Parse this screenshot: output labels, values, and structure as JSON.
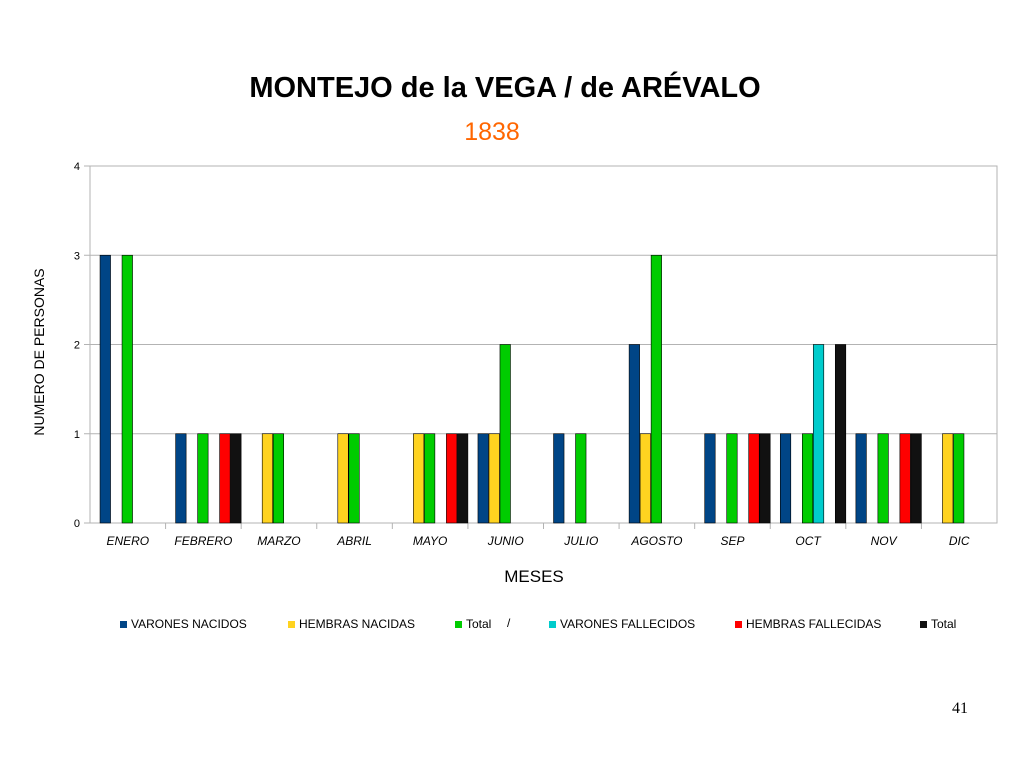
{
  "slide": {
    "title": "MONTEJO de la VEGA / de ARÉVALO",
    "subtitle": "1838",
    "page_number": "41"
  },
  "legend_separator": "/",
  "chart_data": {
    "type": "bar",
    "title": "",
    "xlabel": "MESES",
    "ylabel": "NUMERO DE PERSONAS",
    "ylim": [
      0,
      4
    ],
    "yticks": [
      "0",
      "1",
      "2",
      "3",
      "4"
    ],
    "grid": true,
    "legend_position": "bottom",
    "categories": [
      "ENERO",
      "FEBRERO",
      "MARZO",
      "ABRIL",
      "MAYO",
      "JUNIO",
      "JULIO",
      "AGOSTO",
      "SEP",
      "OCT",
      "NOV",
      "DIC"
    ],
    "series": [
      {
        "name": "VARONES NACIDOS",
        "color": "#004586",
        "values": [
          3,
          1,
          0,
          0,
          0,
          1,
          1,
          2,
          1,
          1,
          1,
          0
        ]
      },
      {
        "name": "HEMBRAS NACIDAS",
        "color": "#ffd320",
        "values": [
          0,
          0,
          1,
          1,
          1,
          1,
          0,
          1,
          0,
          0,
          0,
          1
        ]
      },
      {
        "name": "Total",
        "color": "#00cc00",
        "values": [
          3,
          1,
          1,
          1,
          1,
          2,
          1,
          3,
          1,
          1,
          1,
          1
        ]
      },
      {
        "name": "VARONES FALLECIDOS",
        "color": "#00cccc",
        "values": [
          0,
          0,
          0,
          0,
          0,
          0,
          0,
          0,
          0,
          2,
          0,
          0
        ]
      },
      {
        "name": "HEMBRAS FALLECIDAS",
        "color": "#ff0000",
        "values": [
          0,
          1,
          0,
          0,
          1,
          0,
          0,
          0,
          1,
          0,
          1,
          0
        ]
      },
      {
        "name": "Total",
        "color": "#111111",
        "values": [
          0,
          1,
          0,
          0,
          1,
          0,
          0,
          0,
          1,
          2,
          1,
          0
        ]
      }
    ]
  }
}
